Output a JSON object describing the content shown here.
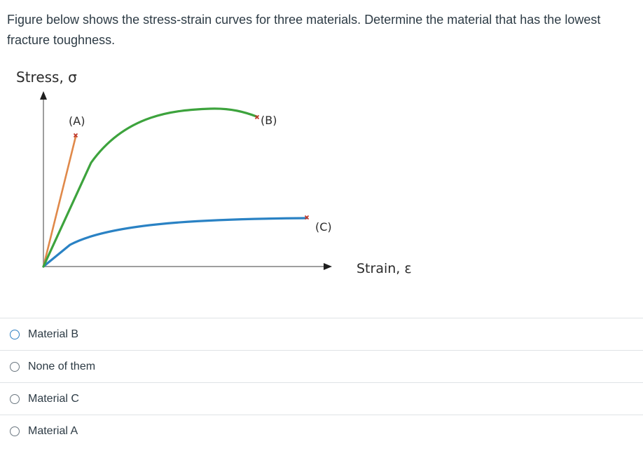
{
  "question": {
    "text": "Figure below shows the stress-strain curves for three materials. Determine the material that has the lowest fracture toughness."
  },
  "figure": {
    "y_axis_label": "Stress, σ",
    "x_axis_label": "Strain, ε",
    "curves": [
      {
        "label": "(A)",
        "color": "#e0894a"
      },
      {
        "label": "(B)",
        "color": "#3da33d"
      },
      {
        "label": "(C)",
        "color": "#2a82c4"
      }
    ],
    "fracture_marker_color": "#c0392b"
  },
  "answers": [
    {
      "label": "Material B"
    },
    {
      "label": "None of them"
    },
    {
      "label": "Material C"
    },
    {
      "label": "Material A"
    }
  ]
}
